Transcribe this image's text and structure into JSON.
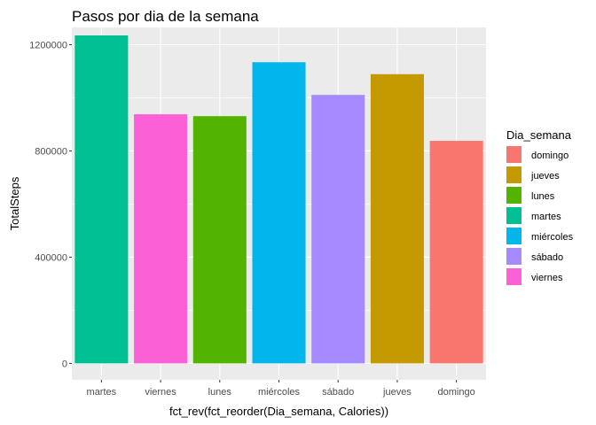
{
  "chart_data": {
    "type": "bar",
    "title": "Pasos por dia de la semana",
    "xlabel": "fct_rev(fct_reorder(Dia_semana, Calories))",
    "ylabel": "TotalSteps",
    "categories": [
      "martes",
      "viernes",
      "lunes",
      "miércoles",
      "sábado",
      "jueves",
      "domingo"
    ],
    "values": [
      1235000,
      938000,
      931000,
      1134000,
      1011000,
      1089000,
      838000
    ],
    "colors": [
      "#00C094",
      "#FB61D7",
      "#53B400",
      "#00B6EB",
      "#A58AFF",
      "#C49A00",
      "#F8766D"
    ],
    "ylim": [
      -62000,
      1265000
    ],
    "yticks": [
      0,
      400000,
      800000,
      1200000
    ],
    "ytick_labels": [
      "0",
      "400000",
      "800000",
      "1200000"
    ],
    "grid": true,
    "legend": {
      "title": "Dia_semana",
      "position": "right",
      "items": [
        {
          "label": "domingo",
          "color": "#F8766D"
        },
        {
          "label": "jueves",
          "color": "#C49A00"
        },
        {
          "label": "lunes",
          "color": "#53B400"
        },
        {
          "label": "martes",
          "color": "#00C094"
        },
        {
          "label": "miércoles",
          "color": "#00B6EB"
        },
        {
          "label": "sábado",
          "color": "#A58AFF"
        },
        {
          "label": "viernes",
          "color": "#FB61D7"
        }
      ]
    },
    "panel_background": "#EBEBEB",
    "grid_color": "#FFFFFF"
  }
}
